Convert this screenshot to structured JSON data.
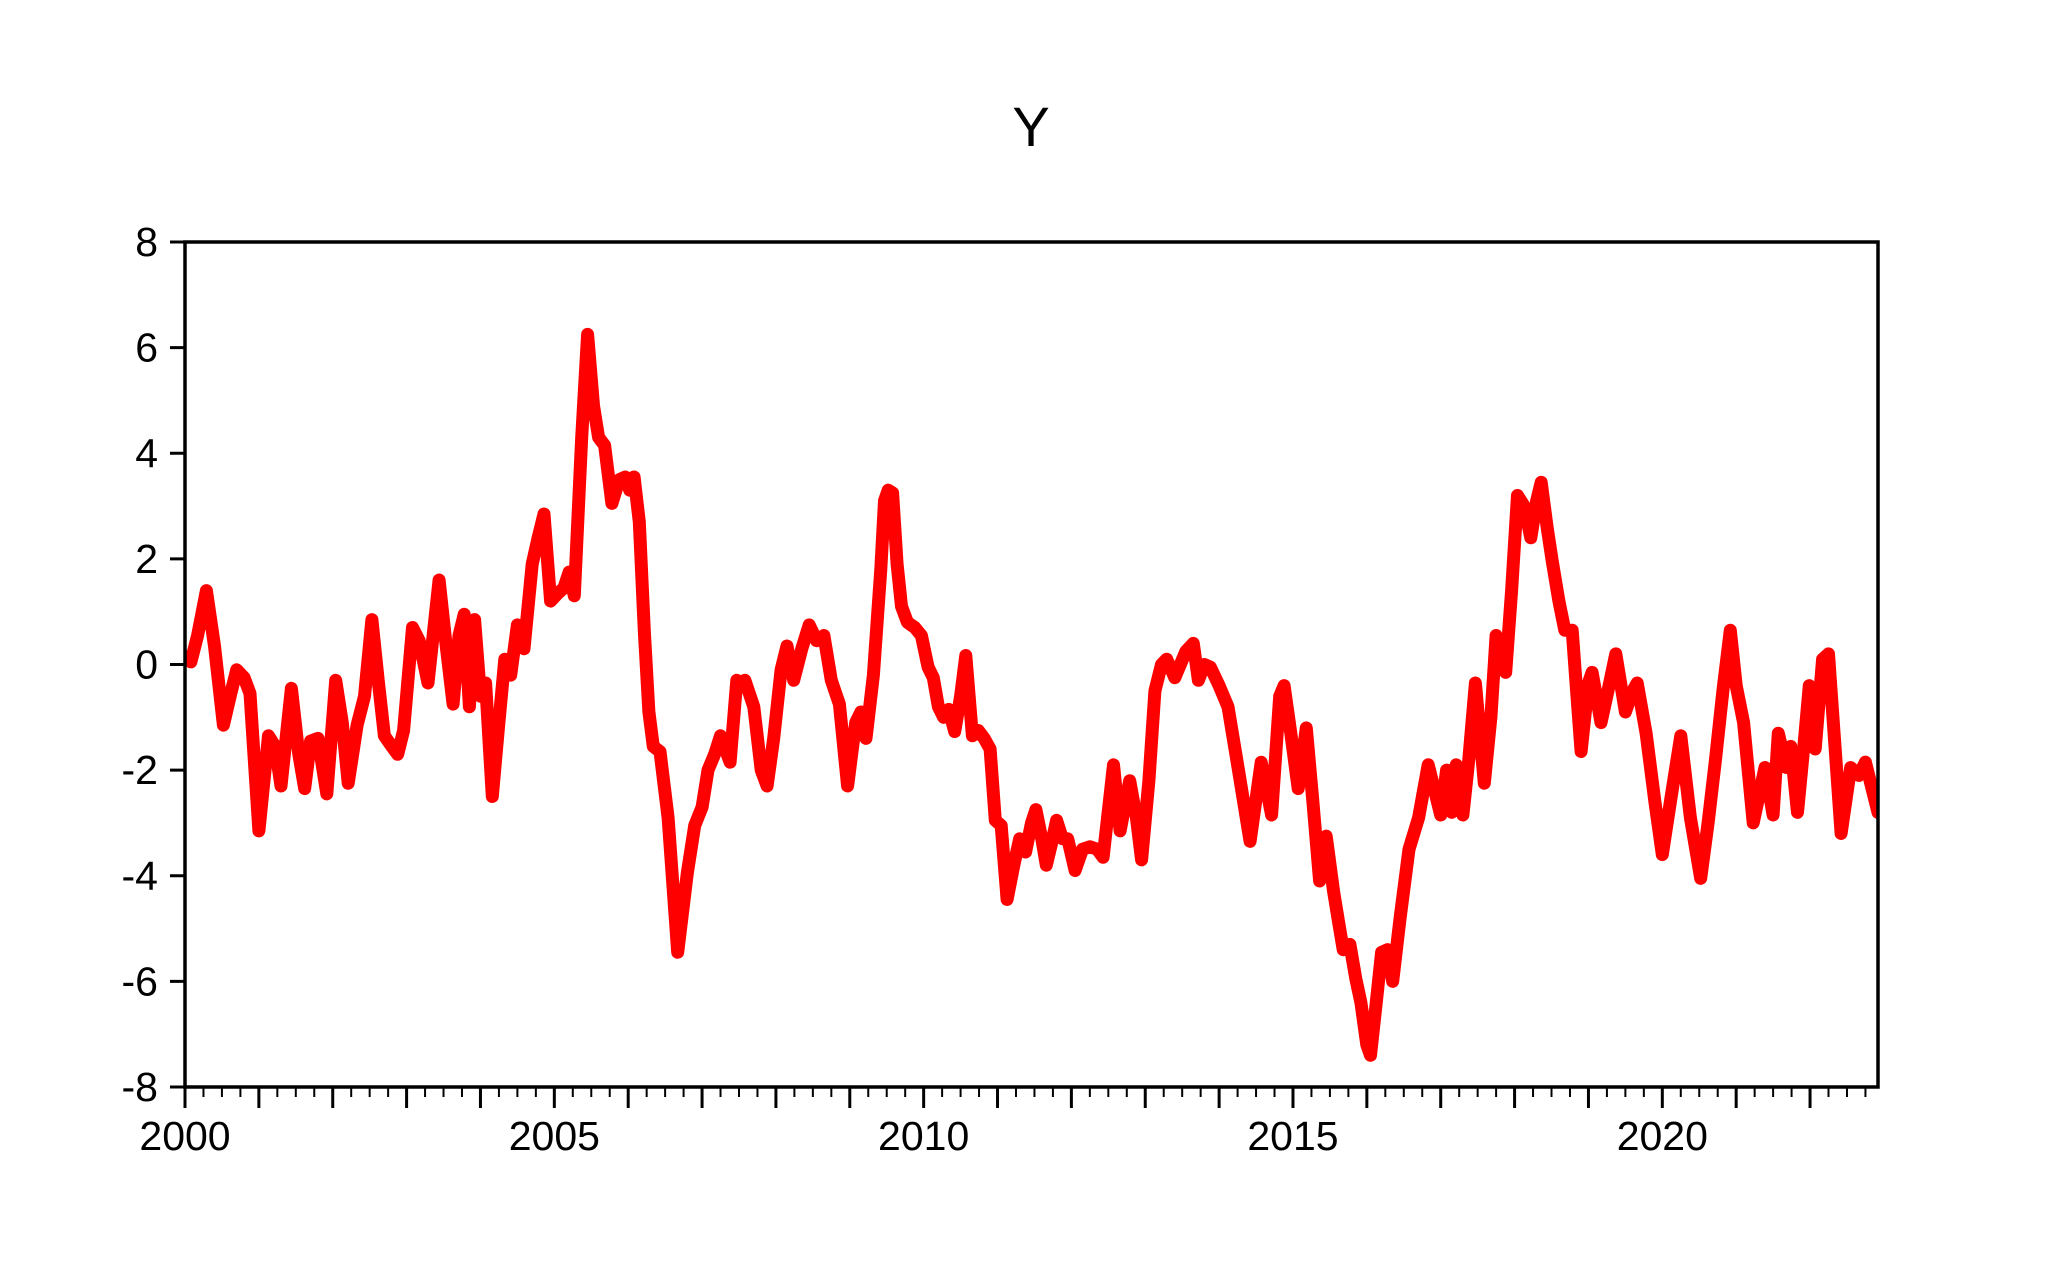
{
  "chart_data": {
    "type": "line",
    "title": "Y",
    "legend": "none",
    "grid": "off",
    "frame": "box",
    "background_color": "#ffffff",
    "axis_color": "#000000",
    "x_axis": {
      "range": [
        2000,
        2022.92
      ],
      "labeled_ticks": [
        {
          "value": 2000,
          "label": "2000"
        },
        {
          "value": 2005,
          "label": "2005"
        },
        {
          "value": 2010,
          "label": "2010"
        },
        {
          "value": 2015,
          "label": "2015"
        },
        {
          "value": 2020,
          "label": "2020"
        }
      ],
      "major_tick_interval_years": 1,
      "minor_tick_interval_years": 0.25
    },
    "y_axis": {
      "range": [
        -8,
        8
      ],
      "ticks": [
        {
          "value": 8,
          "label": "8"
        },
        {
          "value": 6,
          "label": "6"
        },
        {
          "value": 4,
          "label": "4"
        },
        {
          "value": 2,
          "label": "2"
        },
        {
          "value": 0,
          "label": "0"
        },
        {
          "value": -2,
          "label": "-2"
        },
        {
          "value": -4,
          "label": "-4"
        },
        {
          "value": -6,
          "label": "-6"
        },
        {
          "value": -8,
          "label": "-8"
        }
      ]
    },
    "series": [
      {
        "name": "Y",
        "color": "#ff0000",
        "line_width": 13,
        "points": [
          [
            2000.0,
            0.15
          ],
          [
            2000.08,
            0.05
          ],
          [
            2000.17,
            0.55
          ],
          [
            2000.29,
            1.4
          ],
          [
            2000.4,
            0.35
          ],
          [
            2000.52,
            -1.15
          ],
          [
            2000.62,
            -0.55
          ],
          [
            2000.7,
            -0.1
          ],
          [
            2000.8,
            -0.25
          ],
          [
            2000.88,
            -0.55
          ],
          [
            2001.0,
            -3.15
          ],
          [
            2001.13,
            -1.35
          ],
          [
            2001.22,
            -1.55
          ],
          [
            2001.3,
            -2.3
          ],
          [
            2001.44,
            -0.45
          ],
          [
            2001.54,
            -1.7
          ],
          [
            2001.62,
            -2.35
          ],
          [
            2001.7,
            -1.45
          ],
          [
            2001.8,
            -1.4
          ],
          [
            2001.92,
            -2.45
          ],
          [
            2002.04,
            -0.3
          ],
          [
            2002.13,
            -1.1
          ],
          [
            2002.21,
            -2.25
          ],
          [
            2002.33,
            -1.15
          ],
          [
            2002.43,
            -0.6
          ],
          [
            2002.53,
            0.85
          ],
          [
            2002.62,
            -0.35
          ],
          [
            2002.7,
            -1.35
          ],
          [
            2002.8,
            -1.55
          ],
          [
            2002.88,
            -1.7
          ],
          [
            2002.96,
            -1.25
          ],
          [
            2003.08,
            0.7
          ],
          [
            2003.17,
            0.45
          ],
          [
            2003.29,
            -0.35
          ],
          [
            2003.44,
            1.6
          ],
          [
            2003.54,
            0.3
          ],
          [
            2003.63,
            -0.75
          ],
          [
            2003.71,
            0.55
          ],
          [
            2003.78,
            0.95
          ],
          [
            2003.85,
            -0.8
          ],
          [
            2003.92,
            0.85
          ],
          [
            2004.0,
            -0.6
          ],
          [
            2004.07,
            -0.35
          ],
          [
            2004.16,
            -2.5
          ],
          [
            2004.25,
            -1.1
          ],
          [
            2004.33,
            0.1
          ],
          [
            2004.41,
            -0.2
          ],
          [
            2004.5,
            0.75
          ],
          [
            2004.59,
            0.3
          ],
          [
            2004.7,
            1.9
          ],
          [
            2004.78,
            2.4
          ],
          [
            2004.86,
            2.85
          ],
          [
            2004.95,
            1.2
          ],
          [
            2005.05,
            1.35
          ],
          [
            2005.13,
            1.45
          ],
          [
            2005.2,
            1.75
          ],
          [
            2005.27,
            1.3
          ],
          [
            2005.37,
            4.3
          ],
          [
            2005.45,
            6.25
          ],
          [
            2005.53,
            4.9
          ],
          [
            2005.6,
            4.3
          ],
          [
            2005.68,
            4.15
          ],
          [
            2005.78,
            3.05
          ],
          [
            2005.88,
            3.5
          ],
          [
            2005.96,
            3.55
          ],
          [
            2006.02,
            3.3
          ],
          [
            2006.08,
            3.55
          ],
          [
            2006.15,
            2.7
          ],
          [
            2006.22,
            0.6
          ],
          [
            2006.28,
            -0.9
          ],
          [
            2006.34,
            -1.55
          ],
          [
            2006.43,
            -1.65
          ],
          [
            2006.54,
            -2.9
          ],
          [
            2006.67,
            -5.45
          ],
          [
            2006.8,
            -3.95
          ],
          [
            2006.9,
            -3.05
          ],
          [
            2007.0,
            -2.7
          ],
          [
            2007.08,
            -2.0
          ],
          [
            2007.17,
            -1.7
          ],
          [
            2007.25,
            -1.35
          ],
          [
            2007.38,
            -1.85
          ],
          [
            2007.47,
            -0.3
          ],
          [
            2007.53,
            -0.4
          ],
          [
            2007.58,
            -0.3
          ],
          [
            2007.7,
            -0.8
          ],
          [
            2007.8,
            -2.0
          ],
          [
            2007.88,
            -2.3
          ],
          [
            2007.97,
            -1.4
          ],
          [
            2008.07,
            -0.1
          ],
          [
            2008.15,
            0.35
          ],
          [
            2008.24,
            -0.3
          ],
          [
            2008.35,
            0.3
          ],
          [
            2008.45,
            0.75
          ],
          [
            2008.55,
            0.45
          ],
          [
            2008.65,
            0.55
          ],
          [
            2008.75,
            -0.3
          ],
          [
            2008.86,
            -0.75
          ],
          [
            2008.97,
            -2.3
          ],
          [
            2009.08,
            -1.1
          ],
          [
            2009.15,
            -0.9
          ],
          [
            2009.22,
            -1.4
          ],
          [
            2009.32,
            -0.2
          ],
          [
            2009.42,
            1.8
          ],
          [
            2009.47,
            3.1
          ],
          [
            2009.52,
            3.3
          ],
          [
            2009.58,
            3.25
          ],
          [
            2009.64,
            1.9
          ],
          [
            2009.7,
            1.1
          ],
          [
            2009.78,
            0.8
          ],
          [
            2009.88,
            0.7
          ],
          [
            2009.97,
            0.55
          ],
          [
            2010.06,
            -0.05
          ],
          [
            2010.13,
            -0.25
          ],
          [
            2010.2,
            -0.8
          ],
          [
            2010.27,
            -1.0
          ],
          [
            2010.34,
            -0.85
          ],
          [
            2010.42,
            -1.27
          ],
          [
            2010.5,
            -0.6
          ],
          [
            2010.57,
            0.17
          ],
          [
            2010.66,
            -1.35
          ],
          [
            2010.74,
            -1.25
          ],
          [
            2010.82,
            -1.4
          ],
          [
            2010.9,
            -1.6
          ],
          [
            2010.97,
            -2.95
          ],
          [
            2011.05,
            -3.05
          ],
          [
            2011.13,
            -4.45
          ],
          [
            2011.22,
            -3.8
          ],
          [
            2011.3,
            -3.3
          ],
          [
            2011.38,
            -3.55
          ],
          [
            2011.46,
            -3.0
          ],
          [
            2011.52,
            -2.75
          ],
          [
            2011.6,
            -3.3
          ],
          [
            2011.66,
            -3.8
          ],
          [
            2011.73,
            -3.4
          ],
          [
            2011.8,
            -2.95
          ],
          [
            2011.88,
            -3.3
          ],
          [
            2011.95,
            -3.3
          ],
          [
            2012.05,
            -3.9
          ],
          [
            2012.15,
            -3.5
          ],
          [
            2012.25,
            -3.45
          ],
          [
            2012.35,
            -3.5
          ],
          [
            2012.43,
            -3.65
          ],
          [
            2012.57,
            -1.9
          ],
          [
            2012.66,
            -3.15
          ],
          [
            2012.79,
            -2.2
          ],
          [
            2012.88,
            -2.9
          ],
          [
            2012.95,
            -3.7
          ],
          [
            2013.05,
            -2.2
          ],
          [
            2013.13,
            -0.5
          ],
          [
            2013.22,
            0.0
          ],
          [
            2013.29,
            0.1
          ],
          [
            2013.4,
            -0.25
          ],
          [
            2013.55,
            0.25
          ],
          [
            2013.65,
            0.4
          ],
          [
            2013.72,
            -0.3
          ],
          [
            2013.8,
            0.0
          ],
          [
            2013.88,
            -0.05
          ],
          [
            2014.0,
            -0.4
          ],
          [
            2014.12,
            -0.8
          ],
          [
            2014.25,
            -1.9
          ],
          [
            2014.42,
            -3.35
          ],
          [
            2014.57,
            -1.85
          ],
          [
            2014.71,
            -2.85
          ],
          [
            2014.82,
            -0.6
          ],
          [
            2014.88,
            -0.4
          ],
          [
            2014.97,
            -1.3
          ],
          [
            2015.07,
            -2.35
          ],
          [
            2015.18,
            -1.2
          ],
          [
            2015.27,
            -2.6
          ],
          [
            2015.36,
            -4.1
          ],
          [
            2015.45,
            -3.25
          ],
          [
            2015.55,
            -4.3
          ],
          [
            2015.62,
            -4.9
          ],
          [
            2015.68,
            -5.4
          ],
          [
            2015.77,
            -5.3
          ],
          [
            2015.85,
            -5.95
          ],
          [
            2015.92,
            -6.4
          ],
          [
            2016.0,
            -7.2
          ],
          [
            2016.05,
            -7.4
          ],
          [
            2016.12,
            -6.5
          ],
          [
            2016.2,
            -5.45
          ],
          [
            2016.28,
            -5.4
          ],
          [
            2016.35,
            -6.0
          ],
          [
            2016.45,
            -4.8
          ],
          [
            2016.57,
            -3.5
          ],
          [
            2016.7,
            -2.9
          ],
          [
            2016.83,
            -1.9
          ],
          [
            2016.92,
            -2.4
          ],
          [
            2017.0,
            -2.85
          ],
          [
            2017.08,
            -2.0
          ],
          [
            2017.15,
            -2.8
          ],
          [
            2017.21,
            -1.9
          ],
          [
            2017.3,
            -2.85
          ],
          [
            2017.38,
            -1.8
          ],
          [
            2017.47,
            -0.35
          ],
          [
            2017.59,
            -2.25
          ],
          [
            2017.68,
            -1.0
          ],
          [
            2017.75,
            0.55
          ],
          [
            2017.82,
            0.25
          ],
          [
            2017.88,
            -0.15
          ],
          [
            2017.96,
            1.4
          ],
          [
            2018.04,
            3.2
          ],
          [
            2018.13,
            3.0
          ],
          [
            2018.22,
            2.4
          ],
          [
            2018.3,
            3.1
          ],
          [
            2018.36,
            3.45
          ],
          [
            2018.44,
            2.6
          ],
          [
            2018.51,
            1.95
          ],
          [
            2018.6,
            1.2
          ],
          [
            2018.68,
            0.65
          ],
          [
            2018.78,
            0.65
          ],
          [
            2018.84,
            -0.5
          ],
          [
            2018.9,
            -1.65
          ],
          [
            2019.0,
            -0.35
          ],
          [
            2019.05,
            -0.15
          ],
          [
            2019.17,
            -1.1
          ],
          [
            2019.28,
            -0.4
          ],
          [
            2019.37,
            0.2
          ],
          [
            2019.5,
            -0.9
          ],
          [
            2019.6,
            -0.5
          ],
          [
            2019.66,
            -0.35
          ],
          [
            2019.78,
            -1.3
          ],
          [
            2019.9,
            -2.6
          ],
          [
            2020.0,
            -3.6
          ],
          [
            2020.12,
            -2.5
          ],
          [
            2020.25,
            -1.35
          ],
          [
            2020.38,
            -2.9
          ],
          [
            2020.52,
            -4.05
          ],
          [
            2020.62,
            -3.0
          ],
          [
            2020.72,
            -1.8
          ],
          [
            2020.82,
            -0.5
          ],
          [
            2020.92,
            0.65
          ],
          [
            2021.0,
            -0.4
          ],
          [
            2021.1,
            -1.1
          ],
          [
            2021.23,
            -3.0
          ],
          [
            2021.39,
            -1.95
          ],
          [
            2021.5,
            -2.85
          ],
          [
            2021.57,
            -1.3
          ],
          [
            2021.68,
            -1.95
          ],
          [
            2021.74,
            -1.55
          ],
          [
            2021.83,
            -2.8
          ],
          [
            2021.92,
            -1.5
          ],
          [
            2021.99,
            -0.4
          ],
          [
            2022.07,
            -1.6
          ],
          [
            2022.17,
            0.1
          ],
          [
            2022.25,
            0.2
          ],
          [
            2022.37,
            -2.2
          ],
          [
            2022.42,
            -3.2
          ],
          [
            2022.55,
            -1.95
          ],
          [
            2022.66,
            -2.1
          ],
          [
            2022.75,
            -1.85
          ],
          [
            2022.83,
            -2.3
          ],
          [
            2022.92,
            -2.8
          ]
        ]
      }
    ]
  }
}
